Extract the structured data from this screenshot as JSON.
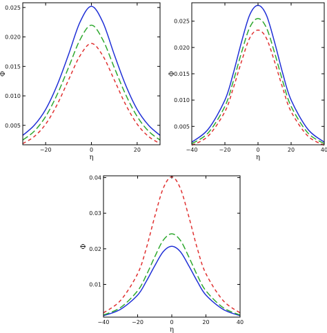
{
  "chart_data": [
    {
      "type": "line",
      "xlabel": "η",
      "ylabel": "Φ",
      "xlim": [
        -30,
        30
      ],
      "ylim": [
        0.0017,
        0.0258
      ],
      "xticks": [
        -20,
        0,
        20
      ],
      "yticks": [
        0.005,
        0.01,
        0.015,
        0.02,
        0.025
      ],
      "ytick_labels": [
        "0.005",
        "0.010",
        "0.015",
        "0.020",
        "0.025"
      ],
      "grid": false,
      "series": [
        {
          "style": "solid",
          "color": "#1f2fd6",
          "x": [
            -30,
            -25,
            -20,
            -15,
            -10,
            -5,
            0,
            5,
            10,
            15,
            20,
            25,
            30
          ],
          "y": [
            0.0033,
            0.005,
            0.0077,
            0.0118,
            0.017,
            0.0225,
            0.0252,
            0.0225,
            0.017,
            0.0118,
            0.0077,
            0.005,
            0.0033
          ]
        },
        {
          "style": "long-dash",
          "color": "#2ea82e",
          "x": [
            -30,
            -25,
            -20,
            -15,
            -10,
            -5,
            0,
            5,
            10,
            15,
            20,
            25,
            30
          ],
          "y": [
            0.0025,
            0.004,
            0.0065,
            0.0102,
            0.0148,
            0.0195,
            0.022,
            0.0195,
            0.0148,
            0.0102,
            0.0065,
            0.004,
            0.0025
          ]
        },
        {
          "style": "short-dash",
          "color": "#e03030",
          "x": [
            -30,
            -25,
            -20,
            -15,
            -10,
            -5,
            0,
            5,
            10,
            15,
            20,
            25,
            30
          ],
          "y": [
            0.0019,
            0.0031,
            0.0052,
            0.0085,
            0.0127,
            0.0168,
            0.0189,
            0.0168,
            0.0127,
            0.0085,
            0.0052,
            0.0031,
            0.0019
          ]
        }
      ]
    },
    {
      "type": "line",
      "xlabel": "η",
      "ylabel": "Φ",
      "xlim": [
        -40,
        40
      ],
      "ylim": [
        0.0015,
        0.0285
      ],
      "xticks": [
        -40,
        -20,
        0,
        20,
        40
      ],
      "yticks": [
        0.005,
        0.01,
        0.015,
        0.02,
        0.025
      ],
      "ytick_labels": [
        "0.005",
        "0.010",
        "0.015",
        "0.020",
        "0.025"
      ],
      "grid": false,
      "series": [
        {
          "style": "solid",
          "color": "#1f2fd6",
          "x": [
            -40,
            -30,
            -20,
            -15,
            -10,
            -5,
            0,
            5,
            10,
            15,
            20,
            30,
            40
          ],
          "y": [
            0.002,
            0.0045,
            0.01,
            0.015,
            0.021,
            0.0262,
            0.028,
            0.0262,
            0.021,
            0.015,
            0.01,
            0.0045,
            0.002
          ]
        },
        {
          "style": "long-dash",
          "color": "#2ea82e",
          "x": [
            -40,
            -30,
            -20,
            -15,
            -10,
            -5,
            0,
            5,
            10,
            15,
            20,
            30,
            40
          ],
          "y": [
            0.0017,
            0.0038,
            0.0088,
            0.0135,
            0.019,
            0.0238,
            0.0255,
            0.0238,
            0.019,
            0.0135,
            0.0088,
            0.0038,
            0.0017
          ]
        },
        {
          "style": "short-dash",
          "color": "#e03030",
          "x": [
            -40,
            -30,
            -20,
            -15,
            -10,
            -5,
            0,
            5,
            10,
            15,
            20,
            30,
            40
          ],
          "y": [
            0.0014,
            0.0032,
            0.0078,
            0.0122,
            0.0173,
            0.0218,
            0.0233,
            0.0218,
            0.0173,
            0.0122,
            0.0078,
            0.0032,
            0.0014
          ]
        }
      ]
    },
    {
      "type": "line",
      "xlabel": "η",
      "ylabel": "Φ",
      "xlim": [
        -40,
        40
      ],
      "ylim": [
        0.0008,
        0.0405
      ],
      "xticks": [
        -40,
        -20,
        0,
        20,
        40
      ],
      "yticks": [
        0.01,
        0.02,
        0.03,
        0.04
      ],
      "ytick_labels": [
        "0.01",
        "0.02",
        "0.03",
        "0.04"
      ],
      "grid": false,
      "series": [
        {
          "style": "solid",
          "color": "#1f2fd6",
          "x": [
            -40,
            -30,
            -20,
            -15,
            -10,
            -5,
            0,
            5,
            10,
            15,
            20,
            30,
            40
          ],
          "y": [
            0.0012,
            0.003,
            0.007,
            0.0108,
            0.0152,
            0.0192,
            0.0207,
            0.0192,
            0.0152,
            0.0108,
            0.007,
            0.003,
            0.0012
          ]
        },
        {
          "style": "long-dash",
          "color": "#2ea82e",
          "x": [
            -40,
            -30,
            -20,
            -15,
            -10,
            -5,
            0,
            5,
            10,
            15,
            20,
            30,
            40
          ],
          "y": [
            0.0014,
            0.0035,
            0.0082,
            0.0125,
            0.0177,
            0.0224,
            0.0242,
            0.0224,
            0.0177,
            0.0125,
            0.0082,
            0.0035,
            0.0014
          ]
        },
        {
          "style": "short-dash",
          "color": "#e03030",
          "x": [
            -40,
            -30,
            -20,
            -15,
            -10,
            -5,
            0,
            5,
            10,
            15,
            20,
            30,
            40
          ],
          "y": [
            0.002,
            0.0055,
            0.013,
            0.02,
            0.029,
            0.037,
            0.0402,
            0.037,
            0.029,
            0.02,
            0.013,
            0.0055,
            0.002
          ]
        }
      ]
    }
  ]
}
